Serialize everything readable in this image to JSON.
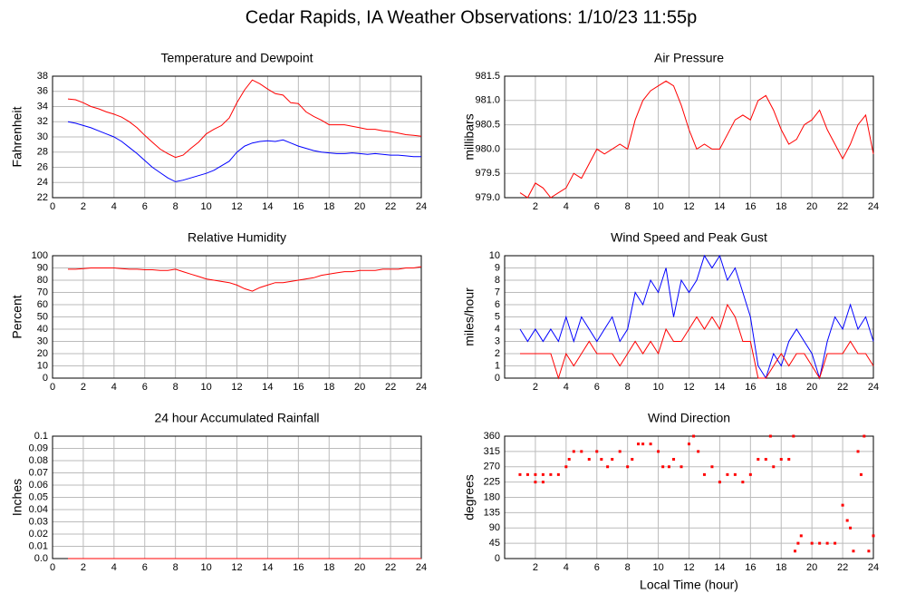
{
  "title": "Cedar Rapids, IA Weather Observations: 1/10/23 11:55p",
  "chart_data": [
    {
      "type": "line",
      "title": "Temperature and Dewpoint",
      "ylabel": "Fahrenheit",
      "xlim": [
        0,
        24
      ],
      "xticks": [
        0,
        2,
        4,
        6,
        8,
        10,
        12,
        14,
        16,
        18,
        20,
        22,
        24
      ],
      "ylim": [
        22,
        38
      ],
      "yticks": [
        22,
        24,
        26,
        28,
        30,
        32,
        34,
        36,
        38
      ],
      "grid": true,
      "x": [
        1,
        1.5,
        2,
        2.5,
        3,
        3.5,
        4,
        4.5,
        5,
        5.5,
        6,
        6.5,
        7,
        7.5,
        8,
        8.5,
        9,
        9.5,
        10,
        10.5,
        11,
        11.5,
        12,
        12.5,
        13,
        13.5,
        14,
        14.5,
        15,
        15.5,
        16,
        16.5,
        17,
        17.5,
        18,
        18.5,
        19,
        19.5,
        20,
        20.5,
        21,
        21.5,
        22,
        22.5,
        23,
        23.5,
        24
      ],
      "series": [
        {
          "color": "#ff0000",
          "values": [
            35,
            34.9,
            34.5,
            34,
            33.7,
            33.3,
            33,
            32.6,
            32,
            31.2,
            30.2,
            29.3,
            28.4,
            27.8,
            27.3,
            27.6,
            28.5,
            29.3,
            30.4,
            31,
            31.5,
            32.5,
            34.5,
            36.2,
            37.5,
            37,
            36.3,
            35.7,
            35.5,
            34.5,
            34.4,
            33.3,
            32.7,
            32.2,
            31.6,
            31.6,
            31.6,
            31.4,
            31.2,
            31,
            31,
            30.8,
            30.7,
            30.5,
            30.3,
            30.2,
            30.1
          ]
        },
        {
          "color": "#0000ff",
          "values": [
            32,
            31.8,
            31.5,
            31.2,
            30.8,
            30.4,
            30,
            29.4,
            28.6,
            27.8,
            26.9,
            26,
            25.3,
            24.6,
            24.1,
            24.3,
            24.6,
            24.9,
            25.2,
            25.6,
            26.2,
            26.8,
            28,
            28.8,
            29.2,
            29.4,
            29.5,
            29.4,
            29.6,
            29.2,
            28.8,
            28.5,
            28.2,
            28,
            27.9,
            27.8,
            27.8,
            27.9,
            27.8,
            27.7,
            27.8,
            27.7,
            27.6,
            27.6,
            27.5,
            27.4,
            27.4
          ]
        }
      ]
    },
    {
      "type": "line",
      "title": "Air Pressure",
      "ylabel": "millibars",
      "xlim": [
        0,
        24
      ],
      "xticks": [
        2,
        4,
        6,
        8,
        10,
        12,
        14,
        16,
        18,
        20,
        22,
        24
      ],
      "ylim": [
        979,
        981.5
      ],
      "yticks": [
        {
          "value": 979,
          "label": "979.0"
        },
        979.5,
        {
          "value": 980,
          "label": "980.0"
        },
        980.5,
        {
          "value": 981,
          "label": "981.0"
        },
        981.5
      ],
      "grid": true,
      "x": [
        1,
        1.5,
        2,
        2.5,
        3,
        3.5,
        4,
        4.5,
        5,
        5.5,
        6,
        6.5,
        7,
        7.5,
        8,
        8.5,
        9,
        9.5,
        10,
        10.5,
        11,
        11.5,
        12,
        12.5,
        13,
        13.5,
        14,
        14.5,
        15,
        15.5,
        16,
        16.5,
        17,
        17.5,
        18,
        18.5,
        19,
        19.5,
        20,
        20.5,
        21,
        21.5,
        22,
        22.5,
        23,
        23.5,
        24
      ],
      "series": [
        {
          "color": "#ff0000",
          "values": [
            979.1,
            979,
            979.3,
            979.2,
            979,
            979.1,
            979.2,
            979.5,
            979.4,
            979.7,
            980,
            979.9,
            980,
            980.1,
            980,
            980.6,
            981,
            981.2,
            981.3,
            981.4,
            981.3,
            980.9,
            980.4,
            980,
            980.1,
            980,
            980,
            980.3,
            980.6,
            980.7,
            980.6,
            981,
            981.1,
            980.8,
            980.4,
            980.1,
            980.2,
            980.5,
            980.6,
            980.8,
            980.4,
            980.1,
            979.8,
            980.1,
            980.5,
            980.7,
            979.9
          ]
        }
      ]
    },
    {
      "type": "line",
      "title": "Relative Humidity",
      "ylabel": "Percent",
      "xlim": [
        0,
        24
      ],
      "xticks": [
        0,
        2,
        4,
        6,
        8,
        10,
        12,
        14,
        16,
        18,
        20,
        22,
        24
      ],
      "ylim": [
        0,
        100
      ],
      "yticks": [
        0,
        10,
        20,
        30,
        40,
        50,
        60,
        70,
        80,
        90,
        100
      ],
      "grid": true,
      "x": [
        1,
        1.5,
        2,
        2.5,
        3,
        3.5,
        4,
        4.5,
        5,
        5.5,
        6,
        6.5,
        7,
        7.5,
        8,
        8.5,
        9,
        9.5,
        10,
        10.5,
        11,
        11.5,
        12,
        12.5,
        13,
        13.5,
        14,
        14.5,
        15,
        15.5,
        16,
        16.5,
        17,
        17.5,
        18,
        18.5,
        19,
        19.5,
        20,
        20.5,
        21,
        21.5,
        22,
        22.5,
        23,
        23.5,
        24
      ],
      "series": [
        {
          "color": "#ff0000",
          "values": [
            89,
            89,
            89.5,
            90,
            90,
            90,
            90,
            89.5,
            89,
            89,
            88.5,
            88.5,
            88,
            88,
            89,
            87,
            85,
            83,
            81,
            80,
            79,
            78,
            76,
            73,
            71,
            74,
            76,
            78,
            78,
            79,
            80,
            81,
            82,
            84,
            85,
            86,
            87,
            87,
            88,
            88,
            88,
            89,
            89,
            89,
            90,
            90,
            91
          ]
        }
      ]
    },
    {
      "type": "line",
      "title": "Wind Speed and Peak Gust",
      "ylabel": "miles/hour",
      "xlim": [
        0,
        24
      ],
      "xticks": [
        2,
        4,
        6,
        8,
        10,
        12,
        14,
        16,
        18,
        20,
        22,
        24
      ],
      "ylim": [
        0,
        10
      ],
      "yticks": [
        0,
        1,
        2,
        3,
        4,
        5,
        6,
        7,
        8,
        9,
        10
      ],
      "grid": true,
      "x": [
        1,
        1.5,
        2,
        2.5,
        3,
        3.5,
        4,
        4.5,
        5,
        5.5,
        6,
        6.5,
        7,
        7.5,
        8,
        8.5,
        9,
        9.5,
        10,
        10.5,
        11,
        11.5,
        12,
        12.5,
        13,
        13.5,
        14,
        14.5,
        15,
        15.5,
        16,
        16.5,
        17,
        17.5,
        18,
        18.5,
        19,
        19.5,
        20,
        20.5,
        21,
        21.5,
        22,
        22.5,
        23,
        23.5,
        24
      ],
      "series": [
        {
          "color": "#0000ff",
          "values": [
            4,
            3,
            4,
            3,
            4,
            3,
            5,
            3,
            5,
            4,
            3,
            4,
            5,
            3,
            4,
            7,
            6,
            8,
            7,
            9,
            5,
            8,
            7,
            8,
            10,
            9,
            10,
            8,
            9,
            7,
            5,
            1,
            0,
            2,
            1,
            3,
            4,
            3,
            2,
            0,
            3,
            5,
            4,
            6,
            4,
            5,
            3
          ]
        },
        {
          "color": "#ff0000",
          "values": [
            2,
            2,
            2,
            2,
            2,
            0,
            2,
            1,
            2,
            3,
            2,
            2,
            2,
            1,
            2,
            3,
            2,
            3,
            2,
            4,
            3,
            3,
            4,
            5,
            4,
            5,
            4,
            6,
            5,
            3,
            3,
            0,
            0,
            1,
            2,
            1,
            2,
            2,
            1,
            0,
            2,
            2,
            2,
            3,
            2,
            2,
            1
          ]
        }
      ]
    },
    {
      "type": "line",
      "title": "24 hour Accumulated Rainfall",
      "ylabel": "Inches",
      "xlim": [
        0,
        24
      ],
      "xticks": [
        0,
        2,
        4,
        6,
        8,
        10,
        12,
        14,
        16,
        18,
        20,
        22,
        24
      ],
      "ylim": [
        0,
        0.1
      ],
      "yticks": [
        {
          "value": 0,
          "label": "0.0"
        },
        0.01,
        0.02,
        0.03,
        0.04,
        0.05,
        0.06,
        0.07,
        0.08,
        0.09,
        0.1
      ],
      "grid": true,
      "x": [
        1,
        24
      ],
      "series": [
        {
          "color": "#ff0000",
          "values": [
            0,
            0
          ]
        }
      ]
    },
    {
      "type": "scatter",
      "title": "Wind Direction",
      "ylabel": "degrees",
      "xlabel": "Local Time (hour)",
      "xlim": [
        0,
        24
      ],
      "xticks": [
        2,
        4,
        6,
        8,
        10,
        12,
        14,
        16,
        18,
        20,
        22,
        24
      ],
      "ylim": [
        0,
        360
      ],
      "yticks": [
        0,
        45,
        90,
        135,
        180,
        225,
        270,
        315,
        360
      ],
      "grid": true,
      "color": "#ff0000",
      "x": [
        1,
        1.5,
        2,
        2.5,
        3,
        3.5,
        2,
        2.5,
        4,
        4.2,
        4.5,
        5,
        5.5,
        6,
        6.3,
        6.7,
        7,
        7.5,
        8,
        8.3,
        8.7,
        9,
        9.5,
        10,
        10.3,
        10.7,
        11,
        11.5,
        12,
        12.3,
        12.6,
        13,
        13.5,
        14,
        14.5,
        15,
        15.5,
        16,
        16.5,
        17,
        17.3,
        17.5,
        18,
        18.5,
        18.8,
        18.9,
        19.1,
        19.3,
        20,
        20.5,
        21,
        21.5,
        22,
        22.3,
        22.5,
        22.7,
        23,
        23.2,
        23.4,
        23.7,
        24
      ],
      "values": [
        247,
        247,
        247,
        247,
        247,
        247,
        225,
        225,
        270,
        292,
        315,
        315,
        292,
        315,
        292,
        270,
        292,
        315,
        270,
        292,
        337,
        337,
        337,
        315,
        270,
        270,
        292,
        270,
        337,
        360,
        315,
        247,
        270,
        225,
        247,
        247,
        225,
        247,
        292,
        292,
        360,
        270,
        292,
        292,
        360,
        22,
        45,
        67,
        45,
        45,
        45,
        45,
        157,
        112,
        90,
        22,
        315,
        247,
        360,
        22,
        67
      ]
    }
  ]
}
